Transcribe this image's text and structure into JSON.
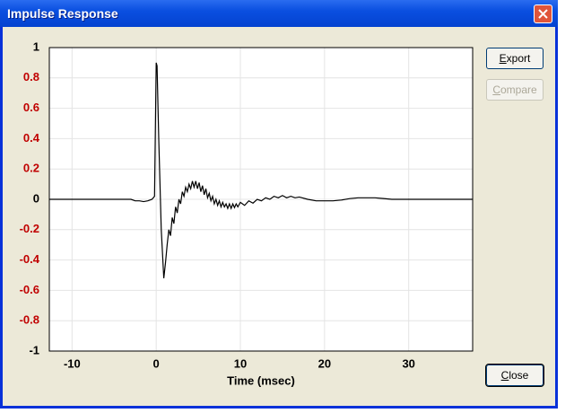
{
  "window": {
    "title": "Impulse Response"
  },
  "buttons": {
    "export": "Export",
    "compare": "Compare",
    "close": "Close"
  },
  "chart_data": {
    "type": "line",
    "xlabel": "Time (msec)",
    "x": [
      -12.7,
      -3,
      -2.5,
      -2,
      -1.5,
      -1,
      -0.5,
      -0.2,
      0,
      0.1,
      0.3,
      0.6,
      0.9,
      1.1,
      1.3,
      1.5,
      1.7,
      1.9,
      2.1,
      2.3,
      2.5,
      2.7,
      2.9,
      3.1,
      3.3,
      3.5,
      3.7,
      3.9,
      4.1,
      4.3,
      4.5,
      4.7,
      4.9,
      5.1,
      5.3,
      5.5,
      5.7,
      5.9,
      6.1,
      6.3,
      6.5,
      6.7,
      6.9,
      7.1,
      7.3,
      7.5,
      7.7,
      7.9,
      8.1,
      8.3,
      8.5,
      8.7,
      8.9,
      9.1,
      9.3,
      9.5,
      9.7,
      10,
      10.5,
      11,
      11.5,
      12,
      12.5,
      13,
      13.5,
      14,
      14.5,
      15,
      15.5,
      16,
      16.5,
      17,
      18,
      19,
      20,
      21,
      22,
      23,
      24,
      25,
      26,
      27,
      28,
      30,
      37.6
    ],
    "series": [
      {
        "color": "#000000",
        "values": [
          0,
          0,
          -0.01,
          -0.01,
          -0.015,
          -0.01,
          0,
          0.02,
          0.9,
          0.88,
          0.4,
          -0.2,
          -0.52,
          -0.42,
          -0.3,
          -0.2,
          -0.24,
          -0.12,
          -0.16,
          -0.05,
          -0.09,
          0.0,
          -0.03,
          0.05,
          0.02,
          0.08,
          0.05,
          0.1,
          0.07,
          0.12,
          0.08,
          0.12,
          0.07,
          0.11,
          0.05,
          0.09,
          0.03,
          0.07,
          0.01,
          0.04,
          -0.01,
          0.02,
          -0.03,
          0.0,
          -0.04,
          -0.01,
          -0.05,
          -0.02,
          -0.05,
          -0.03,
          -0.06,
          -0.03,
          -0.06,
          -0.03,
          -0.055,
          -0.03,
          -0.05,
          -0.02,
          -0.04,
          -0.01,
          -0.025,
          0.0,
          -0.01,
          0.01,
          0.0,
          0.02,
          0.01,
          0.025,
          0.01,
          0.02,
          0.01,
          0.015,
          0.0,
          -0.01,
          -0.01,
          -0.01,
          -0.005,
          0.005,
          0.01,
          0.01,
          0.01,
          0.005,
          0,
          0,
          0
        ]
      }
    ],
    "xlim": [
      -12.7,
      37.6
    ],
    "ylim": [
      -1,
      1
    ],
    "xticks": [
      -10,
      0,
      10,
      20,
      30
    ],
    "yticks": [
      -1,
      -0.8,
      -0.6,
      -0.4,
      -0.2,
      0,
      0.2,
      0.4,
      0.6,
      0.8,
      1
    ],
    "ytick_colors": [
      "#000000",
      "#c00000",
      "#c00000",
      "#c00000",
      "#c00000",
      "#000000",
      "#c00000",
      "#c00000",
      "#c00000",
      "#c00000",
      "#000000"
    ],
    "grid": true
  }
}
